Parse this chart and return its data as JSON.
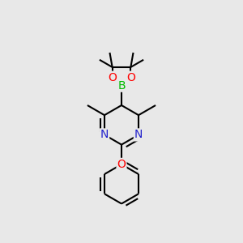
{
  "background_color": "#e8e8e8",
  "bond_color": "#000000",
  "bond_width": 1.5,
  "dbo": 0.018,
  "atom_colors": {
    "B": "#00bb00",
    "O": "#ff0000",
    "N": "#2222cc",
    "C": "#000000"
  },
  "font_size": 10
}
